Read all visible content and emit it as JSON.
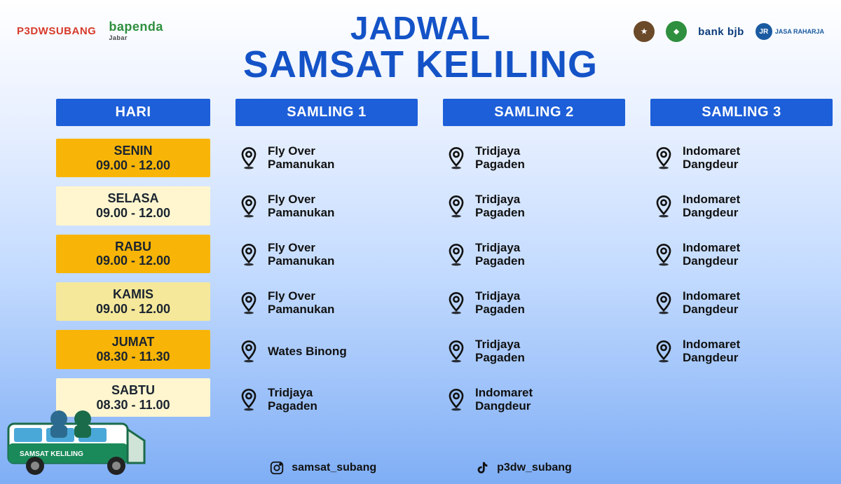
{
  "colors": {
    "accent_blue": "#1d5fd9",
    "title_blue": "#1453c7",
    "hl_yellow": "#f8b507",
    "hl_cream": "#fff6cf",
    "hl_wheat": "#f6e89a"
  },
  "logos": {
    "left": [
      {
        "text": "P3DWSUBANG",
        "color1": "#d83a2b",
        "color2": "#2e8f3e"
      },
      {
        "text": "bapenda",
        "color": "#2e8f3e",
        "sub": "Jabar"
      }
    ],
    "right": [
      {
        "label": "Polda",
        "bg": "#6b4a2a"
      },
      {
        "label": "Jabar",
        "bg": "#2e8f3e"
      },
      {
        "text": "bank bjb",
        "color": "#0a3b7a"
      },
      {
        "text": "JASA RAHARJA",
        "color": "#1a5aa0"
      }
    ]
  },
  "title": {
    "line1": "JADWAL",
    "line2": "SAMSAT KELILING"
  },
  "headers": [
    "HARI",
    "SAMLING 1",
    "SAMLING 2",
    "SAMLING 3"
  ],
  "schedule": [
    {
      "day": "SENIN",
      "time": "09.00 - 12.00",
      "hl": "yellow",
      "slots": [
        "Fly Over Pamanukan",
        "Tridjaya Pagaden",
        "Indomaret Dangdeur"
      ]
    },
    {
      "day": "SELASA",
      "time": "09.00 - 12.00",
      "hl": "cream",
      "slots": [
        "Fly Over Pamanukan",
        "Tridjaya Pagaden",
        "Indomaret Dangdeur"
      ]
    },
    {
      "day": "RABU",
      "time": "09.00 - 12.00",
      "hl": "yellow",
      "slots": [
        "Fly Over Pamanukan",
        "Tridjaya Pagaden",
        "Indomaret Dangdeur"
      ]
    },
    {
      "day": "KAMIS",
      "time": "09.00 - 12.00",
      "hl": "wheat",
      "slots": [
        "Fly Over Pamanukan",
        "Tridjaya Pagaden",
        "Indomaret Dangdeur"
      ]
    },
    {
      "day": "JUMAT",
      "time": "08.30 - 11.30",
      "hl": "yellow",
      "slots": [
        "Wates Binong",
        "Tridjaya Pagaden",
        "Indomaret Dangdeur"
      ]
    },
    {
      "day": "SABTU",
      "time": "08.30 - 11.00",
      "hl": "cream",
      "slots": [
        "Tridjaya Pagaden",
        "Indomaret Dangdeur",
        ""
      ]
    }
  ],
  "social": {
    "instagram": "samsat_subang",
    "tiktok": "p3dw_subang"
  },
  "van_text": "SAMSAT KELILING"
}
